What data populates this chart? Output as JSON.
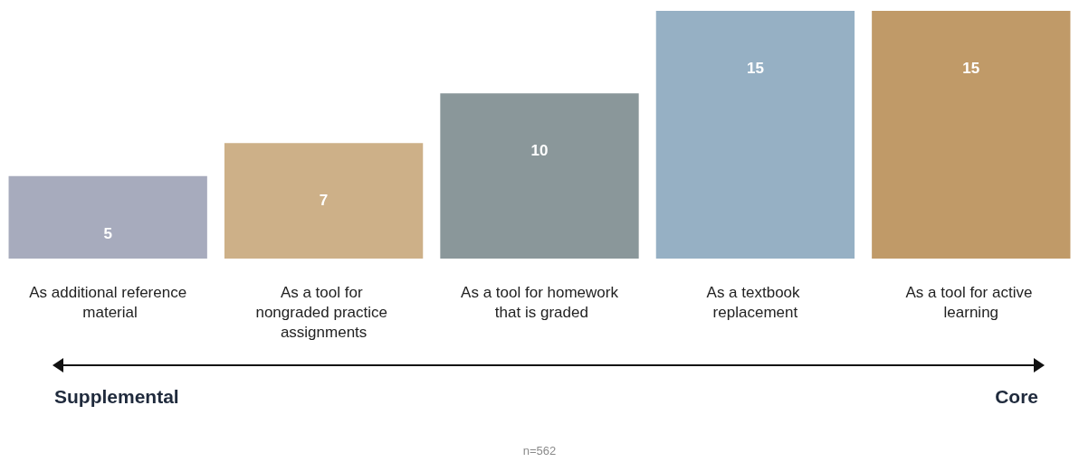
{
  "chart_data": {
    "type": "bar",
    "categories": [
      "As additional reference material",
      "As a tool for nongraded practice assignments",
      "As a tool for homework that is graded",
      "As a textbook replacement",
      "As a tool for active learning"
    ],
    "values": [
      5,
      7,
      10,
      15,
      15
    ],
    "colors": [
      "#a7abbd",
      "#cdb088",
      "#8a979a",
      "#96b0c4",
      "#c09a68"
    ],
    "data_labels": true,
    "annotations": [
      "Supplemental",
      "Core",
      "n=562"
    ]
  }
}
